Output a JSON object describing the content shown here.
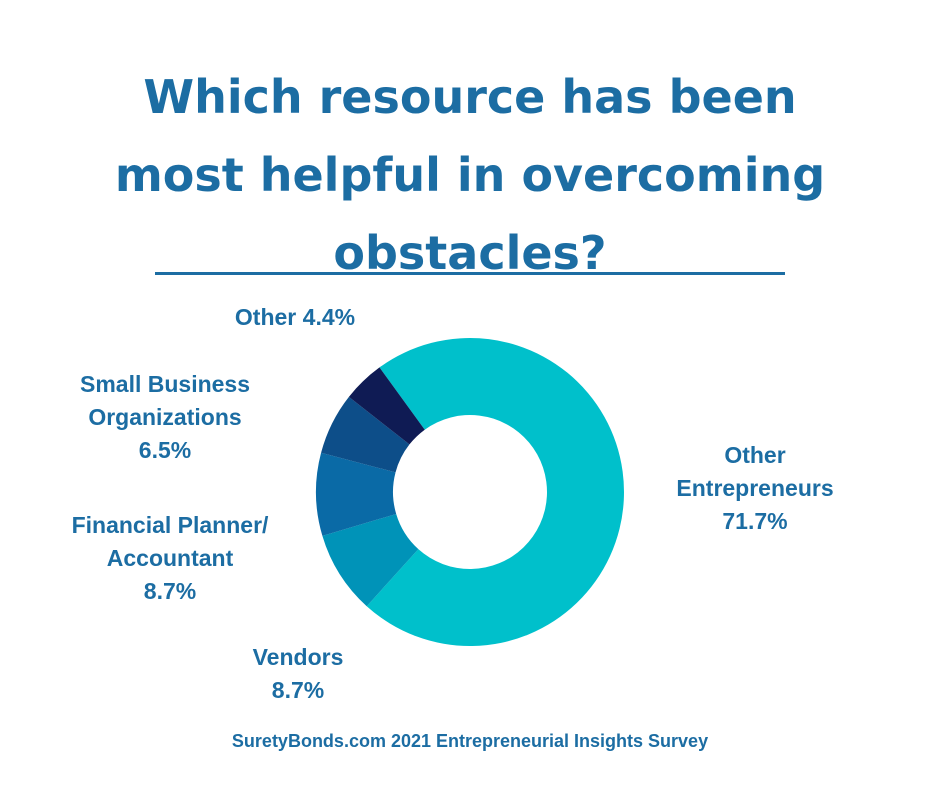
{
  "header": {
    "title_lines": [
      "Which resource has been",
      "most helpful in overcoming",
      "obstacles?"
    ]
  },
  "chart_data": {
    "type": "pie",
    "donut": true,
    "title": "Which resource has been most helpful in overcoming obstacles?",
    "unit": "%",
    "slices": [
      {
        "label_lines": [
          "Other",
          "Entrepreneurs"
        ],
        "value_text": "71.7%",
        "value": 71.7,
        "color": "#00c0cb"
      },
      {
        "label_lines": [
          "Vendors"
        ],
        "value_text": "8.7%",
        "value": 8.7,
        "color": "#0093b8"
      },
      {
        "label_lines": [
          "Financial Planner/",
          "Accountant"
        ],
        "value_text": "8.7%",
        "value": 8.7,
        "color": "#0a6aa6"
      },
      {
        "label_lines": [
          "Small Business",
          "Organizations"
        ],
        "value_text": "6.5%",
        "value": 6.5,
        "color": "#0d4e89"
      },
      {
        "label_lines": [
          "Other 4.4%"
        ],
        "value_text": "",
        "value": 4.4,
        "color": "#0f1b54"
      }
    ]
  },
  "footer": {
    "source": "SuretyBonds.com 2021 Entrepreneurial Insights Survey"
  }
}
